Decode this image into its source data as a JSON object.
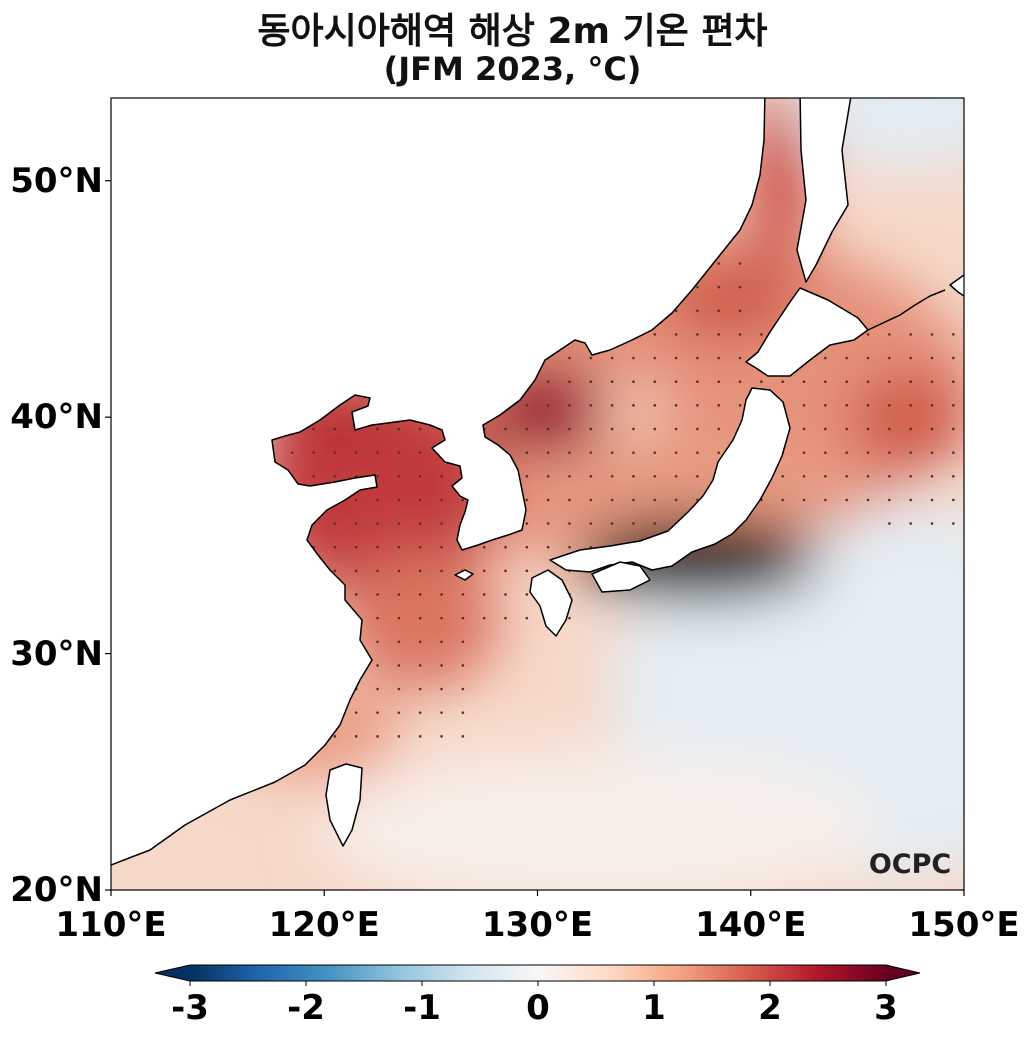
{
  "title": {
    "line1": "동아시아해역 해상 2m 기온 편차",
    "line2": "(JFM 2023, °C)"
  },
  "map": {
    "lon_range": [
      110,
      150
    ],
    "lat_range": [
      20,
      53.5
    ],
    "lat_ticks": [
      {
        "value": 50,
        "label": "50°N"
      },
      {
        "value": 40,
        "label": "40°N"
      },
      {
        "value": 30,
        "label": "30°N"
      },
      {
        "value": 20,
        "label": "20°N"
      }
    ],
    "lon_ticks": [
      {
        "value": 110,
        "label": "110°E"
      },
      {
        "value": 120,
        "label": "120°E"
      },
      {
        "value": 130,
        "label": "130°E"
      },
      {
        "value": 140,
        "label": "140°E"
      },
      {
        "value": 150,
        "label": "150°E"
      }
    ],
    "land_color": "#ffffff",
    "stippling": "significance dots",
    "logo": "OCPC"
  },
  "colorbar": {
    "colormap": "RdBu_r",
    "range": [
      -3,
      3
    ],
    "extend": "both",
    "ticks": [
      {
        "value": -3,
        "label": "-3"
      },
      {
        "value": -2,
        "label": "-2"
      },
      {
        "value": -1,
        "label": "-1"
      },
      {
        "value": 0,
        "label": "0"
      },
      {
        "value": 1,
        "label": "1"
      },
      {
        "value": 2,
        "label": "2"
      },
      {
        "value": 3,
        "label": "3"
      }
    ],
    "colors": [
      "#053061",
      "#2166ac",
      "#4393c3",
      "#92c5de",
      "#d1e5f0",
      "#f7f7f7",
      "#fddbc7",
      "#f4a582",
      "#d6604d",
      "#b2182b",
      "#67001f"
    ]
  }
}
